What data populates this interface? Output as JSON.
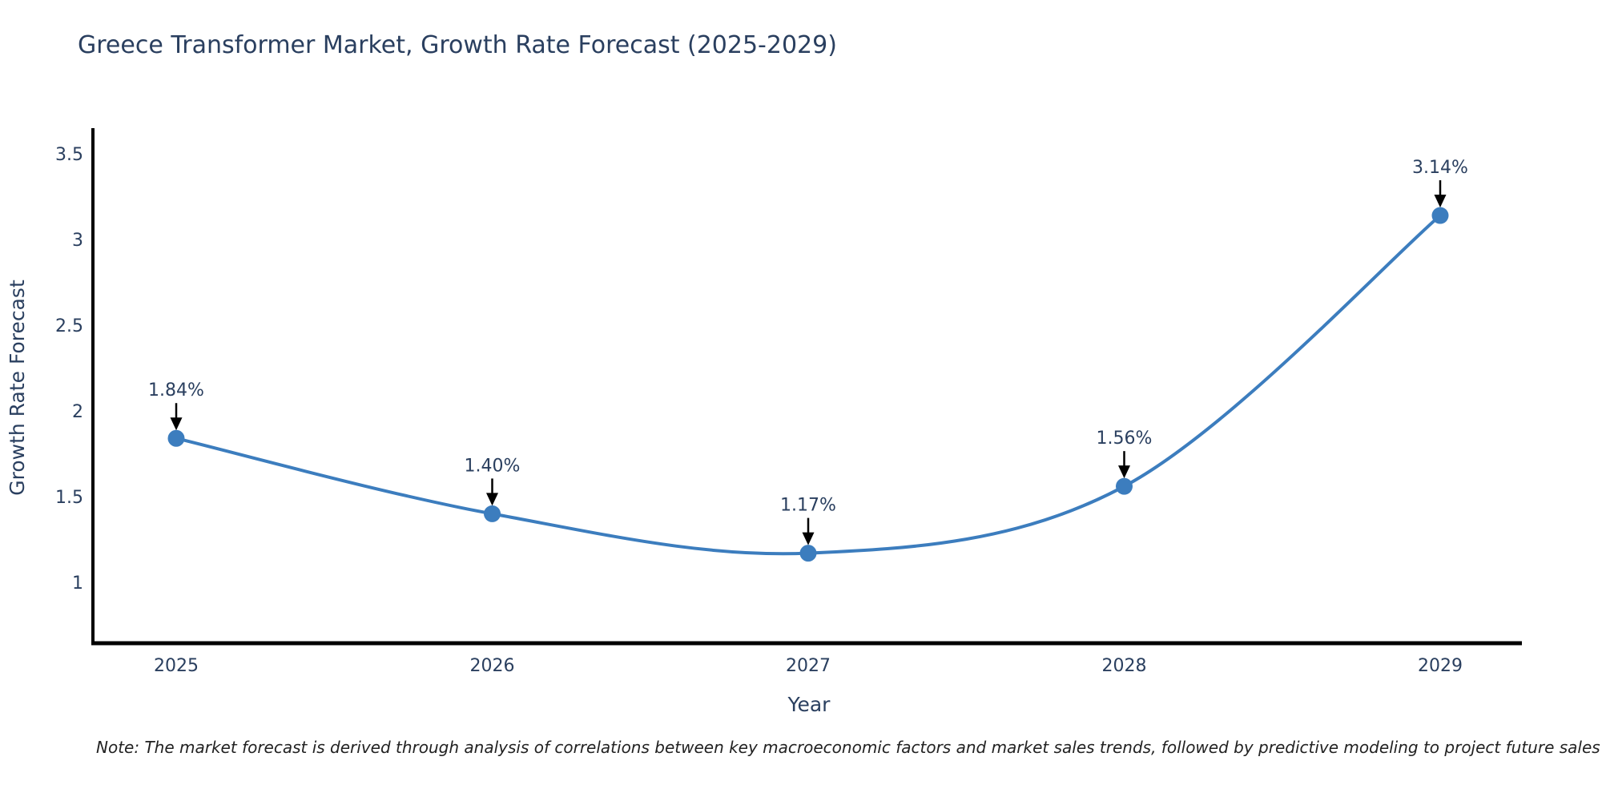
{
  "title": "Greece Transformer Market, Growth Rate Forecast (2025-2029)",
  "note": "Note: The market forecast is derived through analysis of correlations between key macroeconomic factors and market sales trends, followed by predictive modeling to project future sales",
  "chart_data": {
    "type": "line",
    "title": "Greece Transformer Market, Growth Rate Forecast (2025-2029)",
    "xlabel": "Year",
    "ylabel": "Growth Rate Forecast",
    "x": [
      2025,
      2026,
      2027,
      2028,
      2029
    ],
    "y": [
      1.84,
      1.4,
      1.17,
      1.56,
      3.14
    ],
    "point_labels": [
      "1.84%",
      "1.40%",
      "1.17%",
      "1.56%",
      "3.14%"
    ],
    "xticks": [
      "2025",
      "2026",
      "2027",
      "2028",
      "2029"
    ],
    "yticks": [
      3.5,
      3,
      2.5,
      2,
      1.5,
      1
    ],
    "ylim": [
      0.63,
      3.66
    ],
    "line_shape": "spline",
    "grid": false,
    "legend": "none",
    "colors": {
      "line": "#3c7dbe",
      "marker": "#3c7dbe",
      "axis": "#000000",
      "text": "#2a3f5f",
      "annotation_arrow": "#000000",
      "note_text": "#222222",
      "background": "#ffffff"
    }
  }
}
